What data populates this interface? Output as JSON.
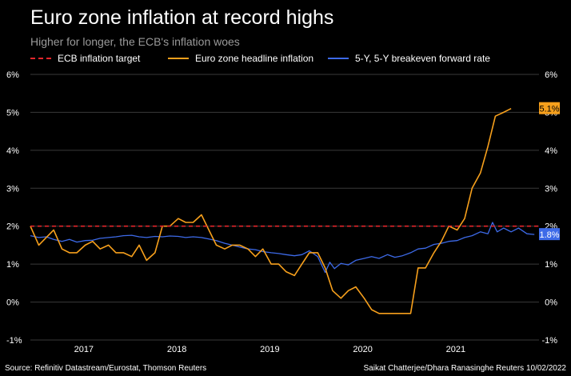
{
  "header": {
    "title": "Euro zone inflation at record highs",
    "subtitle": "Higher for longer, the ECB's inflation woes"
  },
  "footer": {
    "source": "Source: Refinitiv Datastream/Eurostat, Thomson Reuters",
    "credit": "Saikat Chatterjee/Dhara Ranasinghe Reuters 10/02/2022"
  },
  "colors": {
    "background": "#000000",
    "target": "#e4262b",
    "inflation": "#f7a01c",
    "breakeven": "#3d6ae8",
    "grid": "#3a3a3a"
  },
  "chart_data": {
    "type": "line",
    "title": "Euro zone inflation at record highs",
    "subtitle": "Higher for longer, the ECB's inflation woes",
    "xlabel": "",
    "ylabel": "",
    "xlim": [
      2016.58,
      2022.05
    ],
    "ylim": [
      -1,
      6
    ],
    "x_ticks": [
      {
        "value": 2017.0,
        "label": "2017"
      },
      {
        "value": 2018.0,
        "label": "2018"
      },
      {
        "value": 2019.0,
        "label": "2019"
      },
      {
        "value": 2020.0,
        "label": "2020"
      },
      {
        "value": 2021.0,
        "label": "2021"
      }
    ],
    "y_ticks": [
      {
        "value": -1,
        "label": "-1%"
      },
      {
        "value": 0,
        "label": "0%"
      },
      {
        "value": 1,
        "label": "1%"
      },
      {
        "value": 2,
        "label": "2%"
      },
      {
        "value": 3,
        "label": "3%"
      },
      {
        "value": 4,
        "label": "4%"
      },
      {
        "value": 5,
        "label": "5%"
      },
      {
        "value": 6,
        "label": "6%"
      }
    ],
    "grid": true,
    "legend_position": "top",
    "series": [
      {
        "name": "ECB inflation target",
        "style": "dashed",
        "points": [
          [
            2016.58,
            2.0
          ],
          [
            2022.05,
            2.0
          ]
        ]
      },
      {
        "name": "Euro zone headline inflation",
        "style": "solid",
        "end_label": "5.1%",
        "points": [
          [
            2016.58,
            2.0
          ],
          [
            2016.67,
            1.5
          ],
          [
            2016.75,
            1.7
          ],
          [
            2016.83,
            1.9
          ],
          [
            2016.92,
            1.4
          ],
          [
            2017.0,
            1.3
          ],
          [
            2017.08,
            1.3
          ],
          [
            2017.17,
            1.5
          ],
          [
            2017.25,
            1.6
          ],
          [
            2017.33,
            1.4
          ],
          [
            2017.42,
            1.5
          ],
          [
            2017.5,
            1.3
          ],
          [
            2017.58,
            1.3
          ],
          [
            2017.67,
            1.2
          ],
          [
            2017.75,
            1.5
          ],
          [
            2017.83,
            1.1
          ],
          [
            2017.92,
            1.3
          ],
          [
            2018.0,
            2.0
          ],
          [
            2018.08,
            2.0
          ],
          [
            2018.17,
            2.2
          ],
          [
            2018.25,
            2.1
          ],
          [
            2018.33,
            2.1
          ],
          [
            2018.42,
            2.3
          ],
          [
            2018.5,
            1.9
          ],
          [
            2018.58,
            1.5
          ],
          [
            2018.67,
            1.4
          ],
          [
            2018.75,
            1.5
          ],
          [
            2018.83,
            1.5
          ],
          [
            2018.92,
            1.4
          ],
          [
            2019.0,
            1.2
          ],
          [
            2019.08,
            1.4
          ],
          [
            2019.17,
            1.0
          ],
          [
            2019.25,
            1.0
          ],
          [
            2019.33,
            0.8
          ],
          [
            2019.42,
            0.7
          ],
          [
            2019.5,
            1.0
          ],
          [
            2019.58,
            1.3
          ],
          [
            2019.67,
            1.3
          ],
          [
            2019.75,
            0.9
          ],
          [
            2019.83,
            0.3
          ],
          [
            2019.92,
            0.1
          ],
          [
            2020.0,
            0.3
          ],
          [
            2020.08,
            0.4
          ],
          [
            2020.17,
            0.1
          ],
          [
            2020.25,
            -0.2
          ],
          [
            2020.33,
            -0.3
          ],
          [
            2020.42,
            -0.3
          ],
          [
            2020.5,
            -0.3
          ],
          [
            2020.58,
            -0.3
          ],
          [
            2020.67,
            -0.3
          ],
          [
            2020.75,
            0.9
          ],
          [
            2020.83,
            0.9
          ],
          [
            2020.92,
            1.3
          ],
          [
            2021.0,
            1.6
          ],
          [
            2021.08,
            2.0
          ],
          [
            2021.17,
            1.9
          ],
          [
            2021.25,
            2.2
          ],
          [
            2021.33,
            3.0
          ],
          [
            2021.42,
            3.4
          ],
          [
            2021.5,
            4.1
          ],
          [
            2021.58,
            4.9
          ],
          [
            2021.67,
            5.0
          ],
          [
            2021.75,
            5.1
          ]
        ]
      },
      {
        "name": "5-Y, 5-Y breakeven forward rate",
        "style": "solid",
        "end_label": "1.8%",
        "points": [
          [
            2016.58,
            1.75
          ],
          [
            2016.67,
            1.7
          ],
          [
            2016.75,
            1.72
          ],
          [
            2016.83,
            1.65
          ],
          [
            2016.92,
            1.6
          ],
          [
            2017.0,
            1.65
          ],
          [
            2017.08,
            1.58
          ],
          [
            2017.17,
            1.62
          ],
          [
            2017.25,
            1.63
          ],
          [
            2017.33,
            1.68
          ],
          [
            2017.42,
            1.7
          ],
          [
            2017.5,
            1.72
          ],
          [
            2017.58,
            1.75
          ],
          [
            2017.67,
            1.76
          ],
          [
            2017.75,
            1.72
          ],
          [
            2017.83,
            1.7
          ],
          [
            2017.92,
            1.73
          ],
          [
            2018.0,
            1.72
          ],
          [
            2018.08,
            1.74
          ],
          [
            2018.17,
            1.73
          ],
          [
            2018.25,
            1.7
          ],
          [
            2018.33,
            1.72
          ],
          [
            2018.42,
            1.7
          ],
          [
            2018.5,
            1.66
          ],
          [
            2018.58,
            1.62
          ],
          [
            2018.67,
            1.55
          ],
          [
            2018.75,
            1.5
          ],
          [
            2018.83,
            1.45
          ],
          [
            2018.92,
            1.4
          ],
          [
            2019.0,
            1.38
          ],
          [
            2019.08,
            1.33
          ],
          [
            2019.17,
            1.3
          ],
          [
            2019.25,
            1.28
          ],
          [
            2019.33,
            1.25
          ],
          [
            2019.42,
            1.22
          ],
          [
            2019.5,
            1.25
          ],
          [
            2019.58,
            1.35
          ],
          [
            2019.67,
            1.2
          ],
          [
            2019.75,
            0.78
          ],
          [
            2019.8,
            1.05
          ],
          [
            2019.85,
            0.88
          ],
          [
            2019.92,
            1.02
          ],
          [
            2020.0,
            0.98
          ],
          [
            2020.08,
            1.1
          ],
          [
            2020.17,
            1.15
          ],
          [
            2020.25,
            1.2
          ],
          [
            2020.33,
            1.15
          ],
          [
            2020.42,
            1.25
          ],
          [
            2020.5,
            1.18
          ],
          [
            2020.58,
            1.22
          ],
          [
            2020.67,
            1.3
          ],
          [
            2020.75,
            1.4
          ],
          [
            2020.83,
            1.42
          ],
          [
            2020.92,
            1.52
          ],
          [
            2021.0,
            1.55
          ],
          [
            2021.08,
            1.6
          ],
          [
            2021.17,
            1.62
          ],
          [
            2021.25,
            1.7
          ],
          [
            2021.33,
            1.75
          ],
          [
            2021.42,
            1.85
          ],
          [
            2021.5,
            1.8
          ],
          [
            2021.55,
            2.1
          ],
          [
            2021.6,
            1.85
          ],
          [
            2021.67,
            1.95
          ],
          [
            2021.75,
            1.85
          ],
          [
            2021.83,
            1.95
          ],
          [
            2021.92,
            1.8
          ],
          [
            2022.0,
            1.78
          ]
        ]
      }
    ]
  }
}
